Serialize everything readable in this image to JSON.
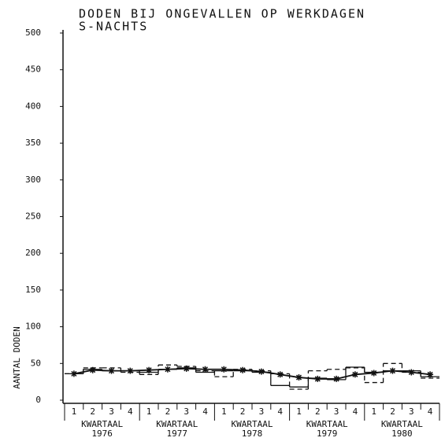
{
  "chart_data": {
    "type": "line",
    "title": [
      "DODEN BIJ ONGEVALLEN OP WERKDAGEN",
      "S-NACHTS"
    ],
    "y_label": "AANTAL DODEN",
    "categories": [
      "1",
      "2",
      "3",
      "4",
      "1",
      "2",
      "3",
      "4",
      "1",
      "2",
      "3",
      "4",
      "1",
      "2",
      "3",
      "4",
      "1",
      "2",
      "3",
      "4"
    ],
    "groups": [
      {
        "label": "KWARTAAL",
        "year": "1976"
      },
      {
        "label": "KWARTAAL",
        "year": "1977"
      },
      {
        "label": "KWARTAAL",
        "year": "1978"
      },
      {
        "label": "KWARTAAL",
        "year": "1979"
      },
      {
        "label": "KWARTAAL",
        "year": "1980"
      }
    ],
    "series": [
      {
        "style": "step",
        "color": "#111",
        "values": [
          36,
          42,
          40,
          40,
          38,
          42,
          44,
          38,
          40,
          40,
          38,
          20,
          18,
          30,
          28,
          45,
          38,
          40,
          40,
          32
        ]
      },
      {
        "style": "dashed-step",
        "color": "#111",
        "values": [
          36,
          44,
          44,
          38,
          35,
          48,
          46,
          40,
          32,
          42,
          40,
          36,
          15,
          40,
          42,
          44,
          24,
          50,
          38,
          30
        ]
      },
      {
        "style": "marker-line",
        "color": "#111",
        "values": [
          36,
          41,
          40,
          40,
          41,
          42,
          43,
          42,
          42,
          41,
          39,
          35,
          31,
          29,
          29,
          35,
          37,
          40,
          38,
          35
        ]
      }
    ],
    "ylim": [
      0,
      500
    ],
    "yticks": [
      0,
      50,
      100,
      150,
      200,
      250,
      300,
      350,
      400,
      450,
      500
    ]
  }
}
